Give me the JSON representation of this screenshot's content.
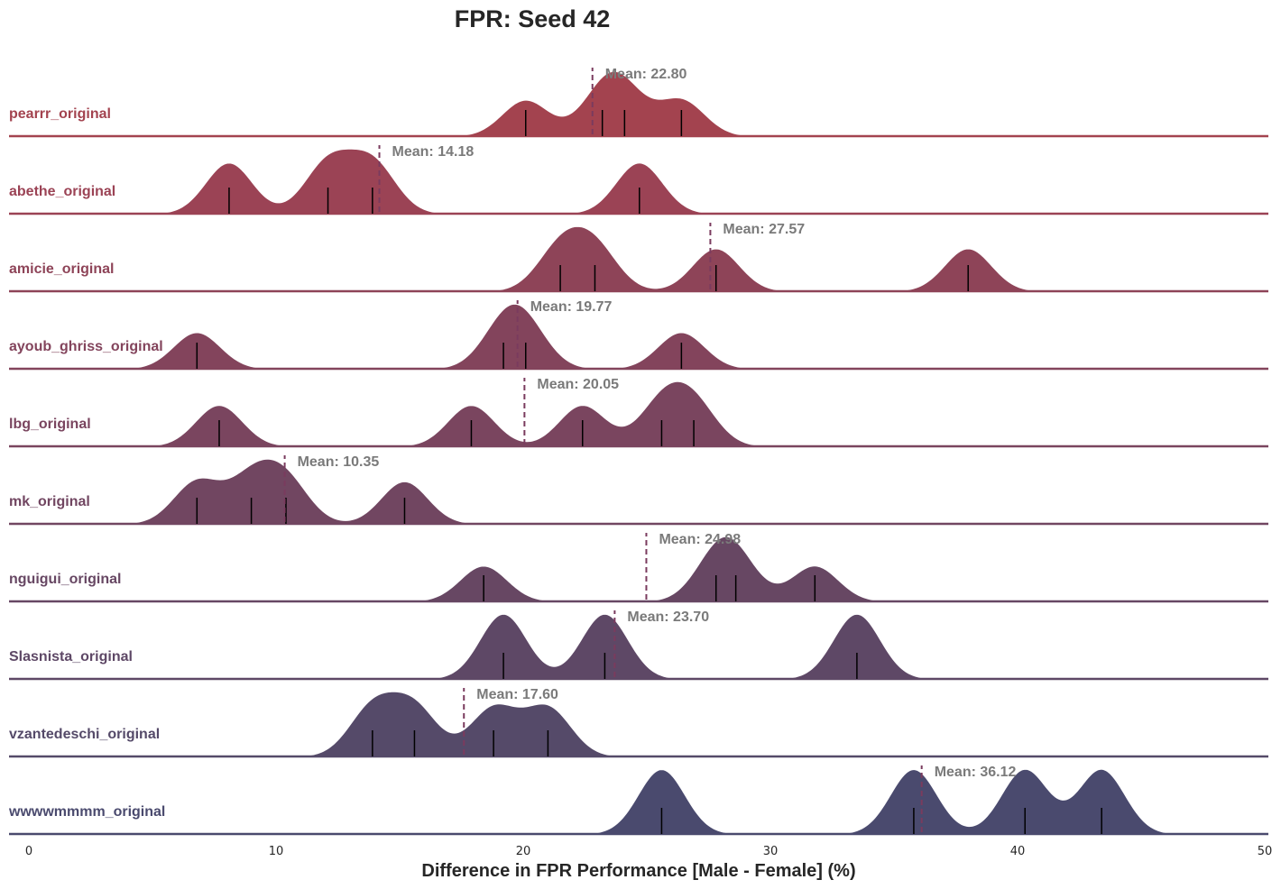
{
  "chart_data": {
    "type": "ridgeline",
    "title": "FPR: Seed 42",
    "xlabel": "Difference in FPR Performance [Male - Female] (%)",
    "ylabel": "",
    "xlim": [
      0,
      50
    ],
    "xticks": [
      0,
      10,
      20,
      30,
      40,
      50
    ],
    "grid": false,
    "legend": "none",
    "series": [
      {
        "name": "pearrr_original",
        "color": "#a3434f",
        "points": [
          20.1,
          23.2,
          24.1,
          26.4
        ],
        "mean": 22.8,
        "mean_label": "Mean: 22.80"
      },
      {
        "name": "abethe_original",
        "color": "#9b4355",
        "points": [
          8.1,
          12.1,
          13.9,
          24.7
        ],
        "mean": 14.18,
        "mean_label": "Mean: 14.18"
      },
      {
        "name": "amicie_original",
        "color": "#8e4458",
        "points": [
          21.5,
          22.9,
          27.8,
          38.0
        ],
        "mean": 27.57,
        "mean_label": "Mean: 27.57"
      },
      {
        "name": "ayoub_ghriss_original",
        "color": "#83445c",
        "points": [
          6.8,
          19.2,
          20.1,
          26.4
        ],
        "mean": 19.77,
        "mean_label": "Mean: 19.77"
      },
      {
        "name": "lbg_original",
        "color": "#7a455f",
        "points": [
          7.7,
          17.9,
          22.4,
          25.6,
          26.9
        ],
        "mean": 20.05,
        "mean_label": "Mean: 20.05"
      },
      {
        "name": "mk_original",
        "color": "#714661",
        "points": [
          6.8,
          9.0,
          10.4,
          15.2
        ],
        "mean": 10.35,
        "mean_label": "Mean: 10.35"
      },
      {
        "name": "nguigui_original",
        "color": "#674763",
        "points": [
          18.4,
          27.8,
          28.6,
          31.8
        ],
        "mean": 24.98,
        "mean_label": "Mean: 24.98"
      },
      {
        "name": "Slasnista_original",
        "color": "#5e4866",
        "points": [
          19.2,
          23.3,
          33.5
        ],
        "mean": 23.7,
        "mean_label": "Mean: 23.70"
      },
      {
        "name": "vzantedeschi_original",
        "color": "#554a69",
        "points": [
          13.9,
          15.6,
          18.8,
          21.0
        ],
        "mean": 17.6,
        "mean_label": "Mean: 17.60"
      },
      {
        "name": "wwwwmmmm_original",
        "color": "#4a4a6e",
        "points": [
          25.6,
          35.8,
          40.3,
          43.4
        ],
        "mean": 36.12,
        "mean_label": "Mean: 36.12"
      }
    ]
  }
}
